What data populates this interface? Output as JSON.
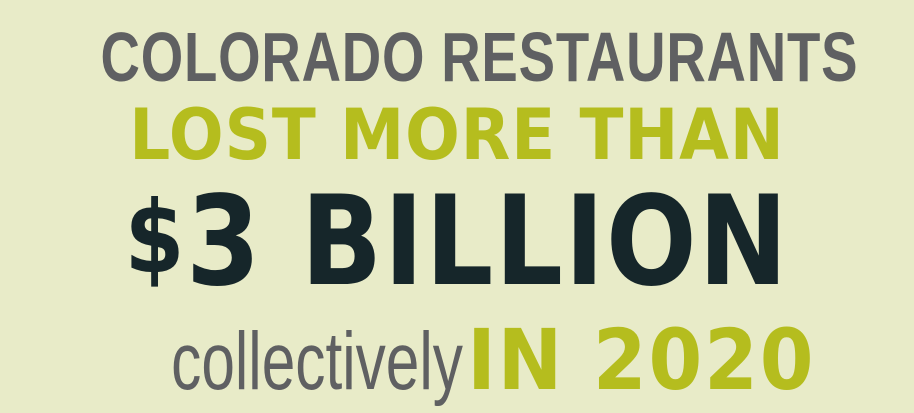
{
  "headline": {
    "line1": "COLORADO RESTAURANTS",
    "line2": "LOST MORE THAN",
    "amount_symbol": "$",
    "amount_text": "3 BILLION",
    "qualifier": "collectively",
    "year_text": "IN 2020"
  },
  "colors": {
    "background": "#e8ebc8",
    "gray": "#5f6062",
    "lime": "#b5bd1e",
    "dark": "#16262a"
  }
}
